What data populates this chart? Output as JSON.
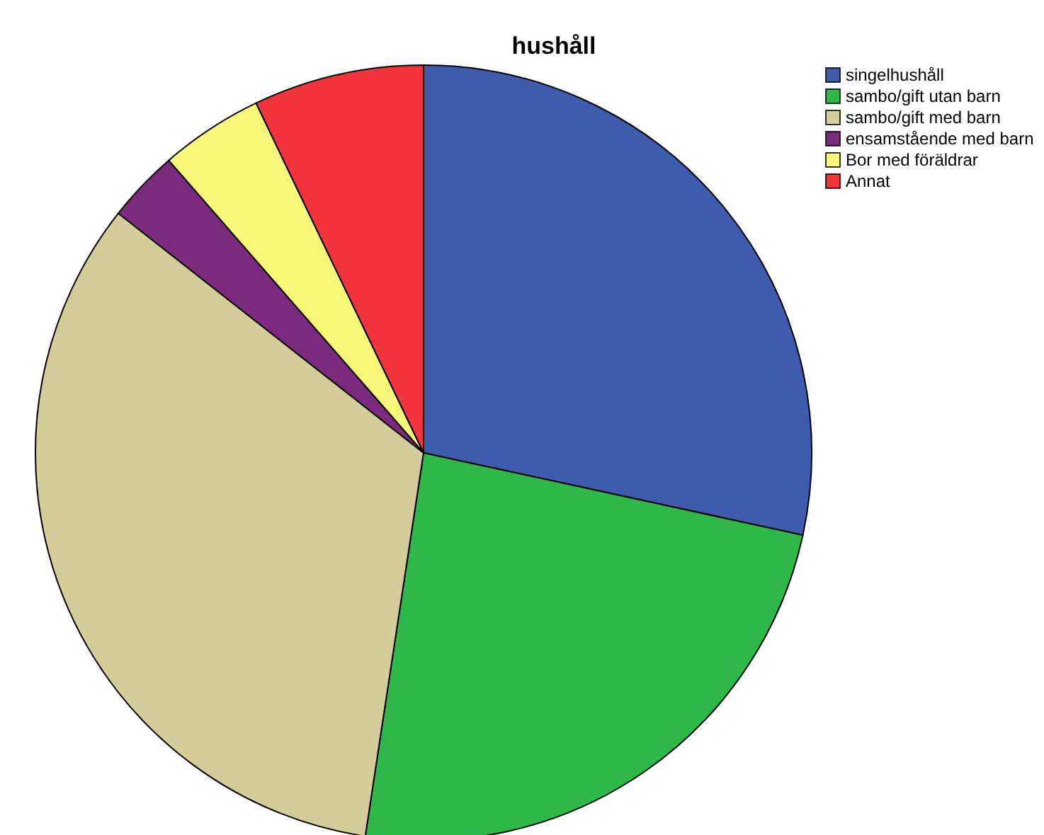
{
  "chart_data": {
    "type": "pie",
    "title": "hushåll",
    "categories": [
      "singelhushåll",
      "sambo/gift utan barn",
      "sambo/gift med barn",
      "ensamstående med barn",
      "Bor med föräldrar",
      "Annat"
    ],
    "values": [
      28.4,
      24.0,
      33.2,
      3.0,
      4.3,
      7.1
    ],
    "colors": [
      "#3f5bae",
      "#2fb84a",
      "#d4cc99",
      "#7b2a7e",
      "#f8f77a",
      "#f2353a"
    ],
    "legend": "top right"
  }
}
